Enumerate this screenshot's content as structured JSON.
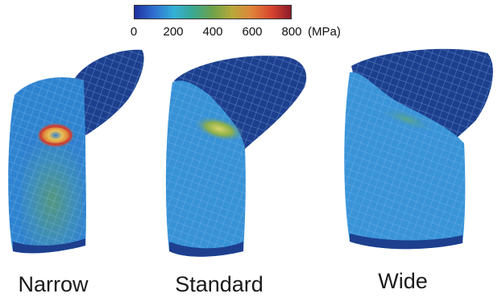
{
  "colorbar": {
    "ticks": [
      "0",
      "200",
      "400",
      "600",
      "800"
    ],
    "unit": "(MPa)",
    "min": 0,
    "max": 800,
    "colors": [
      "#1e2f9e",
      "#2f6fd0",
      "#34b0d8",
      "#3aa890",
      "#6ea24a",
      "#b9a93a",
      "#e0843a",
      "#d8452e",
      "#8c1a2a"
    ]
  },
  "panels": [
    {
      "label": "Narrow",
      "peak_color": "#e9d36a",
      "hotspot_color": "#d8452e"
    },
    {
      "label": "Standard",
      "peak_color": "#c9c96a",
      "hotspot_color": "#8cb04a"
    },
    {
      "label": "Wide",
      "peak_color": "#5aa88a",
      "hotspot_color": "#4a9e9a"
    }
  ],
  "colors": {
    "mesh_base": "#2f84d0",
    "mesh_dark": "#1d3f8e",
    "mesh_light": "#4aa0de",
    "mesh_green": "#4f9a6a"
  }
}
